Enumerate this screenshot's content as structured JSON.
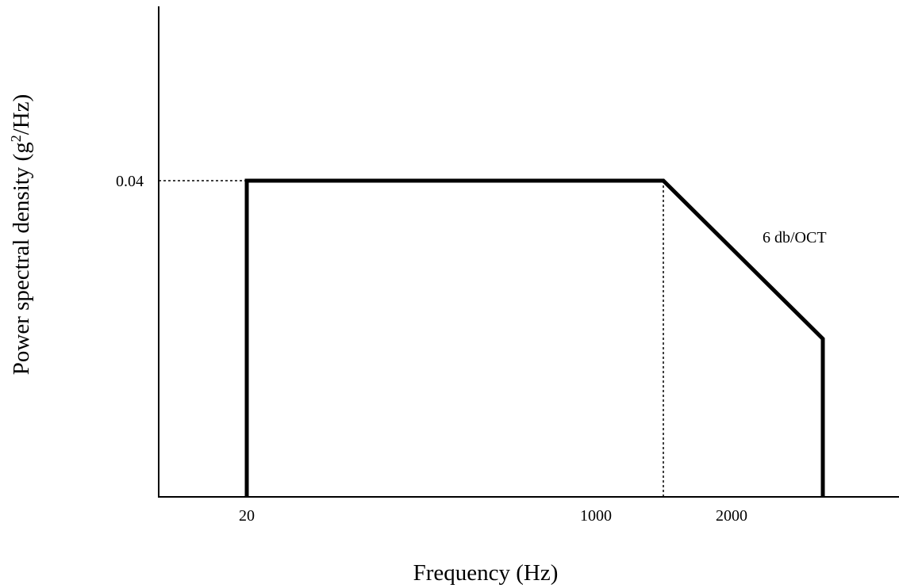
{
  "chart_data": {
    "type": "line",
    "xlabel": "Frequency (Hz)",
    "ylabel_main": "Power spectral density (g",
    "ylabel_sup": "2",
    "ylabel_tail": "/Hz)",
    "x_ticks": [
      "20",
      "1000",
      "2000"
    ],
    "y_ticks": [
      "0.04"
    ],
    "annotation": "6 db/OCT",
    "series": [
      {
        "values": [
          {
            "x": 20,
            "y": 0
          },
          {
            "x": 20,
            "y": 0.04
          },
          {
            "x": 1500,
            "y": 0.04
          },
          {
            "x": 3000,
            "y": 0.02
          },
          {
            "x": 3000,
            "y": 0
          }
        ]
      }
    ],
    "reference_lines": [
      {
        "orientation": "horizontal",
        "y": 0.04,
        "style": "dotted"
      },
      {
        "orientation": "vertical",
        "x": 1500,
        "style": "dotted"
      }
    ],
    "grid": false,
    "legend": "none"
  }
}
